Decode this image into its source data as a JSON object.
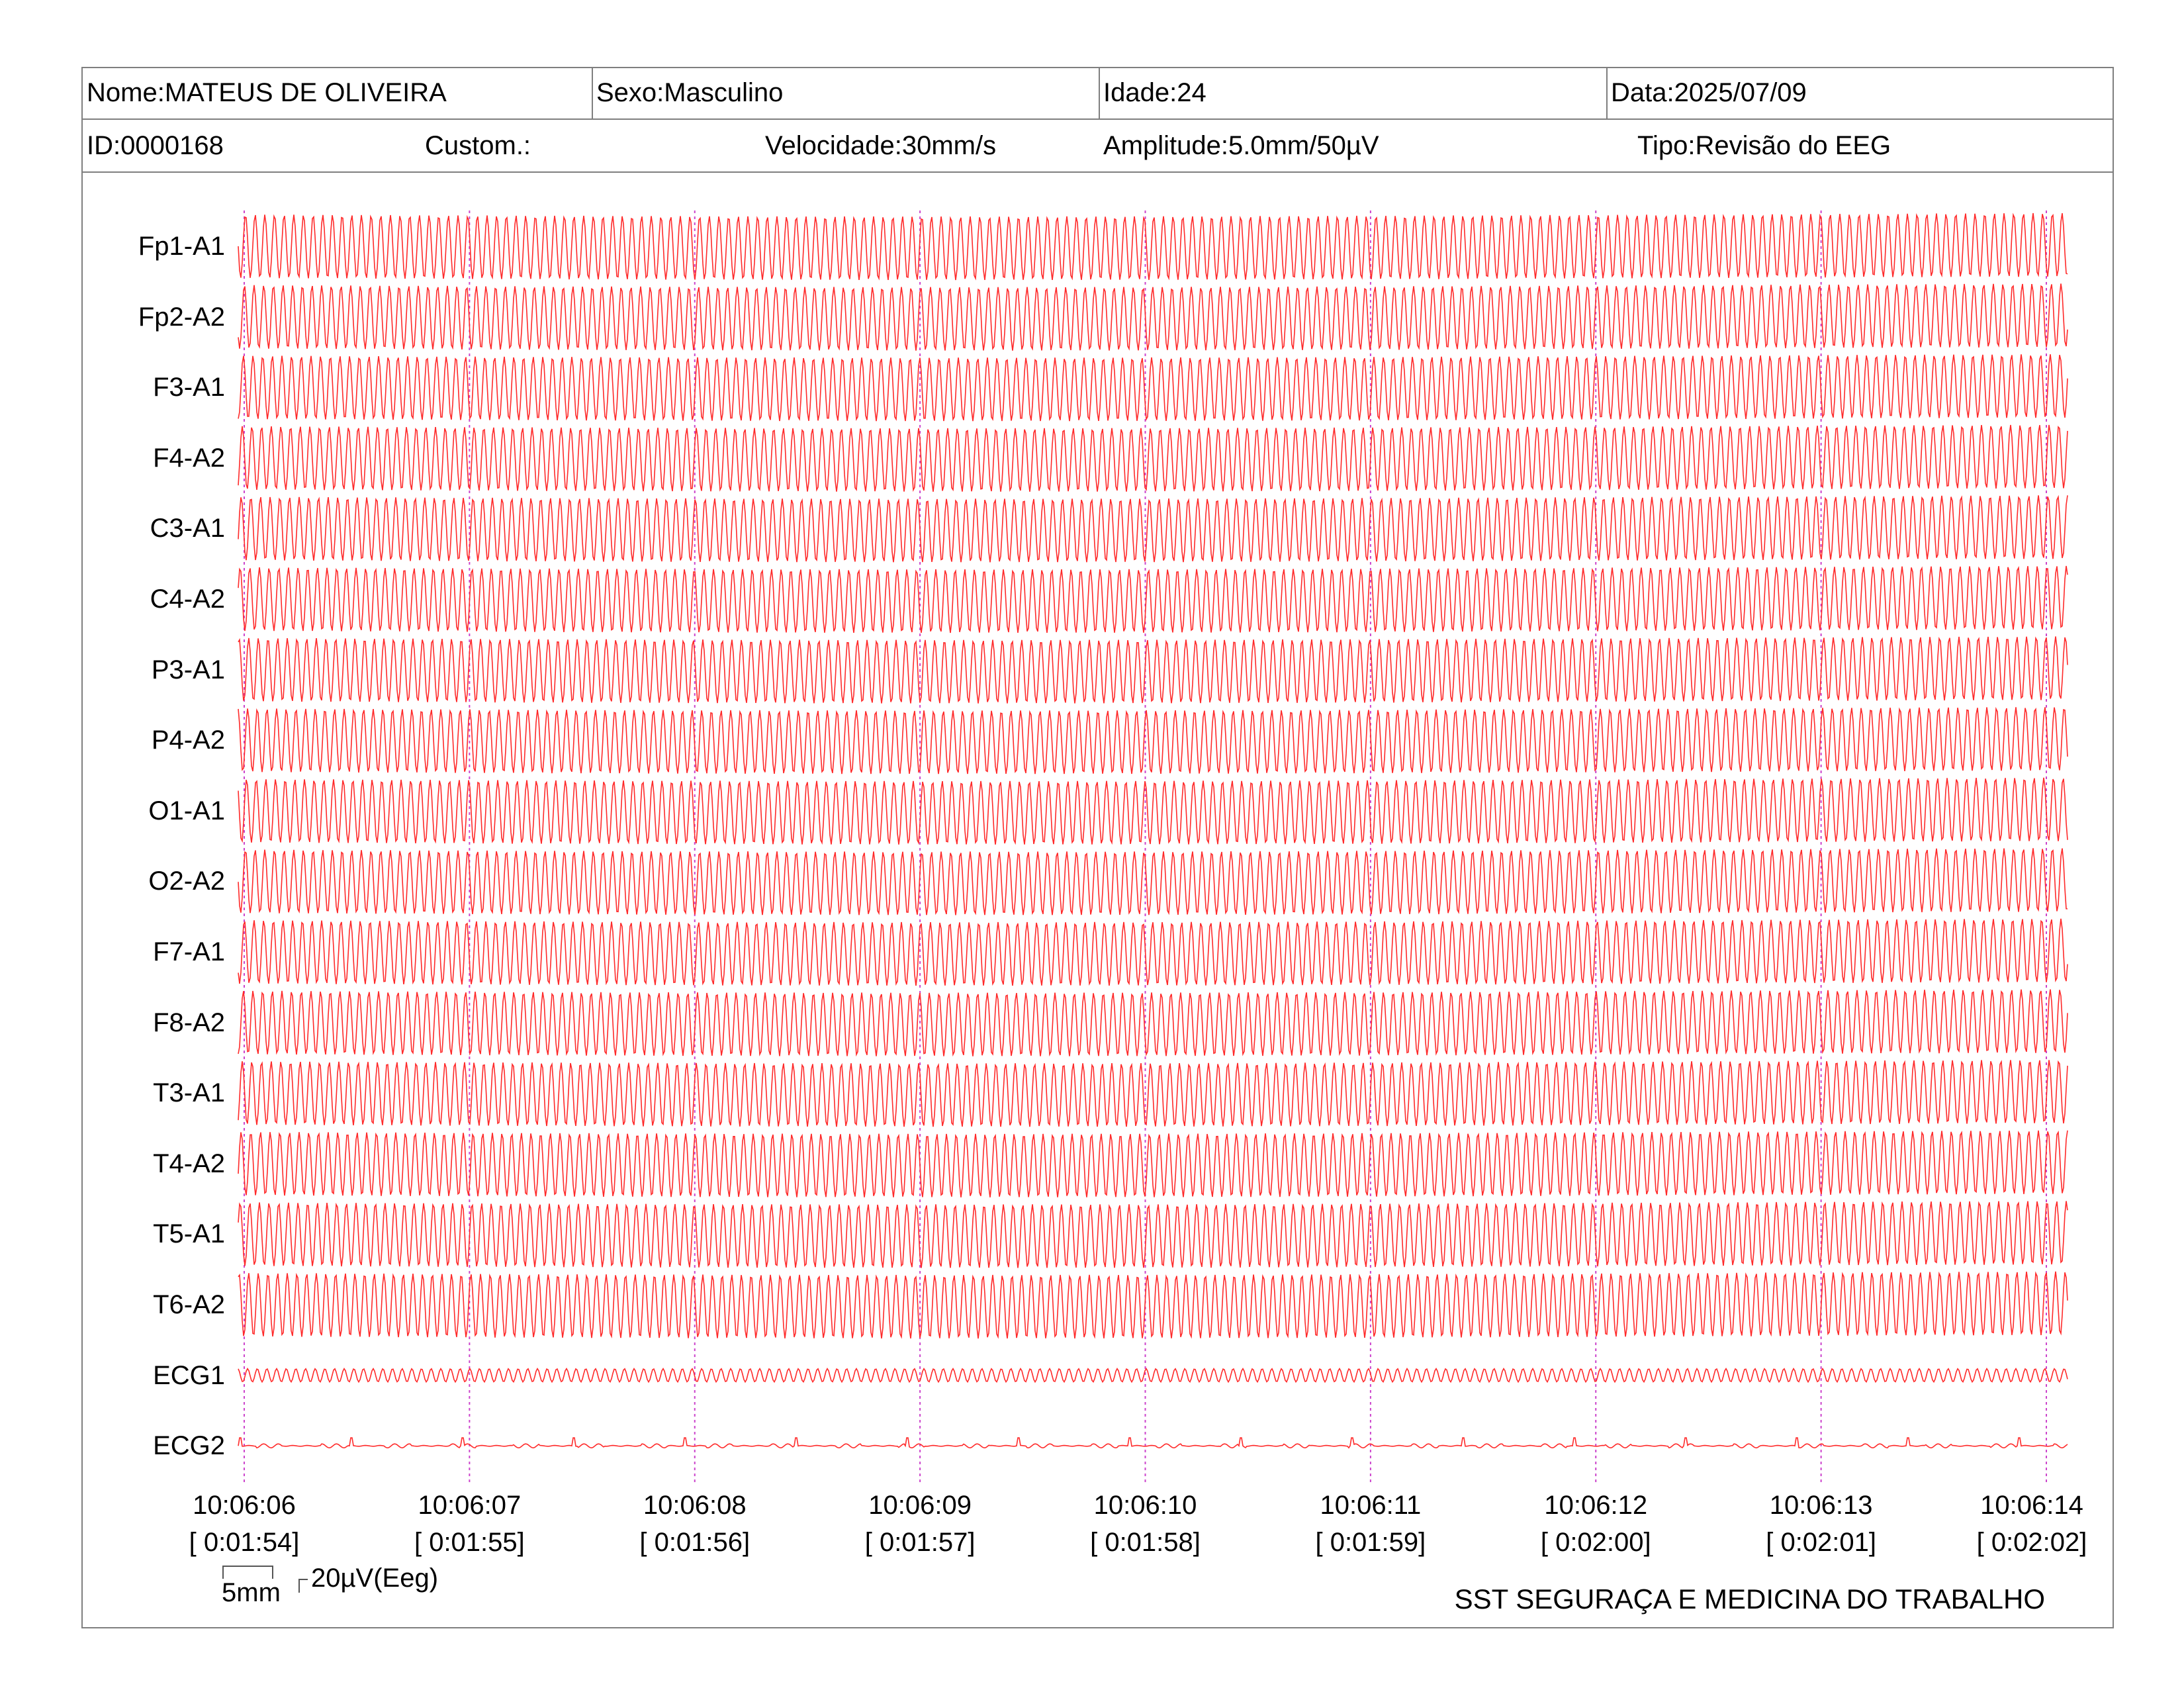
{
  "header": {
    "nome": "Nome:MATEUS DE OLIVEIRA",
    "sexo": "Sexo:Masculino",
    "idade": "Idade:24",
    "data": "Data:2025/07/09",
    "id": "ID:0000168",
    "custom": "Custom.:",
    "velocidade": "Velocidade:30mm/s",
    "amplitude": "Amplitude:5.0mm/50µV",
    "tipo": "Tipo:Revisão do EEG"
  },
  "channels": [
    {
      "label": "Fp1-A1",
      "kind": "eeg"
    },
    {
      "label": "Fp2-A2",
      "kind": "eeg"
    },
    {
      "label": "F3-A1",
      "kind": "eeg"
    },
    {
      "label": "F4-A2",
      "kind": "eeg"
    },
    {
      "label": "C3-A1",
      "kind": "eeg"
    },
    {
      "label": "C4-A2",
      "kind": "eeg"
    },
    {
      "label": "P3-A1",
      "kind": "eeg"
    },
    {
      "label": "P4-A2",
      "kind": "eeg"
    },
    {
      "label": "O1-A1",
      "kind": "eeg"
    },
    {
      "label": "O2-A2",
      "kind": "eeg"
    },
    {
      "label": "F7-A1",
      "kind": "eeg"
    },
    {
      "label": "F8-A2",
      "kind": "eeg"
    },
    {
      "label": "T3-A1",
      "kind": "eeg"
    },
    {
      "label": "T4-A2",
      "kind": "eeg"
    },
    {
      "label": "T5-A1",
      "kind": "eeg"
    },
    {
      "label": "T6-A2",
      "kind": "eeg"
    },
    {
      "label": "ECG1",
      "kind": "ecg1"
    },
    {
      "label": "ECG2",
      "kind": "ecg2"
    }
  ],
  "time_marks": [
    {
      "clock": "10:06:06",
      "elapsed": "[ 0:01:54]"
    },
    {
      "clock": "10:06:07",
      "elapsed": "[ 0:01:55]"
    },
    {
      "clock": "10:06:08",
      "elapsed": "[ 0:01:56]"
    },
    {
      "clock": "10:06:09",
      "elapsed": "[ 0:01:57]"
    },
    {
      "clock": "10:06:10",
      "elapsed": "[ 0:01:58]"
    },
    {
      "clock": "10:06:11",
      "elapsed": "[ 0:01:59]"
    },
    {
      "clock": "10:06:12",
      "elapsed": "[ 0:02:00]"
    },
    {
      "clock": "10:06:13",
      "elapsed": "[ 0:02:01]"
    },
    {
      "clock": "10:06:14",
      "elapsed": "[ 0:02:02]"
    }
  ],
  "calibration": {
    "time_scale": "5mm",
    "amplitude_scale": "20µV(Eeg)"
  },
  "footer": {
    "organization": "SST SEGURAÇA E MEDICINA DO TRABALHO"
  },
  "colors": {
    "trace": "#ff2a2a",
    "time_marker": "#cc44cc",
    "frame": "#7f7f7f"
  }
}
